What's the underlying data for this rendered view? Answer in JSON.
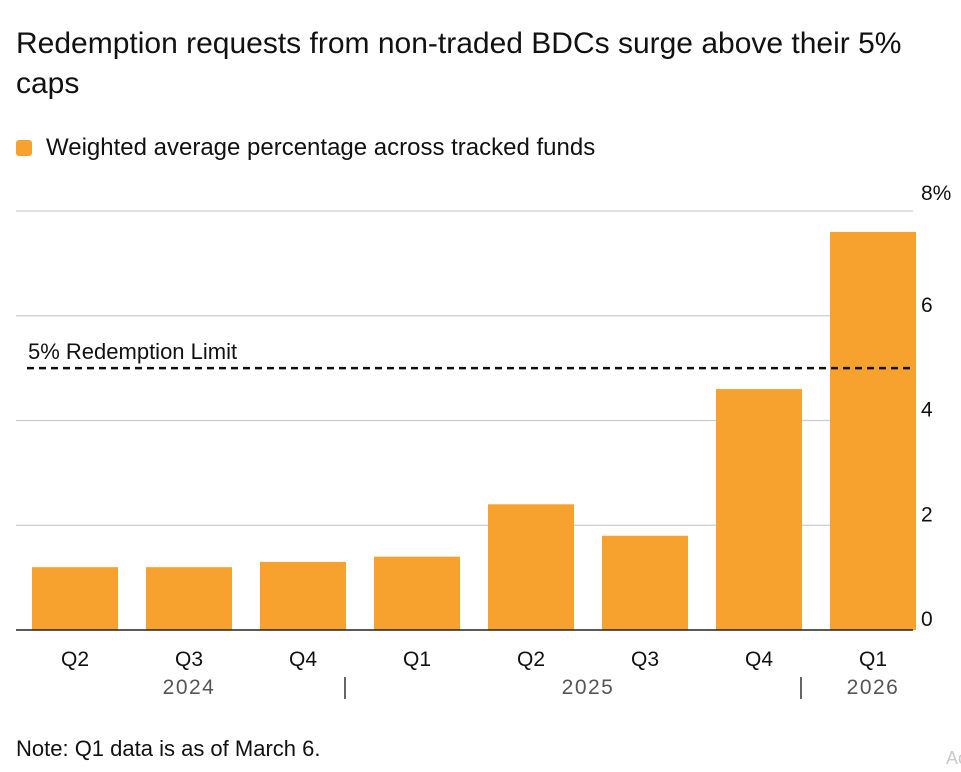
{
  "title": "Redemption requests from non-traded BDCs surge above their 5% caps",
  "legend": {
    "label": "Weighted average percentage across tracked funds",
    "color": "#F7A12E"
  },
  "note": "Note: Q1 data is as of March 6.",
  "watermark": "Ac",
  "chart_data": {
    "type": "bar",
    "title": "Redemption requests from non-traded BDCs surge above their 5% caps",
    "categories": [
      "Q2",
      "Q3",
      "Q4",
      "Q1",
      "Q2",
      "Q3",
      "Q4",
      "Q1"
    ],
    "years": [
      {
        "label": "2024",
        "start": 0,
        "end": 2
      },
      {
        "label": "2025",
        "start": 3,
        "end": 6
      },
      {
        "label": "2026",
        "start": 7,
        "end": 7
      }
    ],
    "series": [
      {
        "name": "Weighted average percentage across tracked funds",
        "values": [
          1.2,
          1.2,
          1.3,
          1.4,
          2.4,
          1.8,
          4.6,
          7.6
        ]
      }
    ],
    "yticks": [
      0,
      2,
      4,
      6,
      8
    ],
    "ytick_labels": [
      "0",
      "2",
      "4",
      "6",
      "8%"
    ],
    "ylim": [
      0,
      8
    ],
    "reference_line": {
      "value": 5,
      "label": "5% Redemption Limit"
    },
    "xlabel": "",
    "ylabel": "",
    "grid": true
  }
}
